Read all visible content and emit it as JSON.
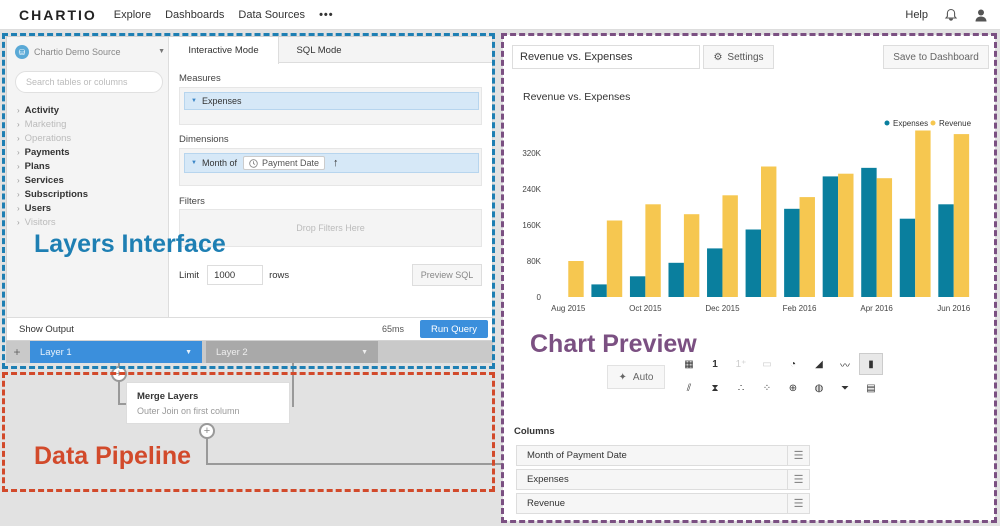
{
  "topbar": {
    "logo": "CHARTIO",
    "nav": [
      "Explore",
      "Dashboards",
      "Data Sources"
    ],
    "more": "•••",
    "help": "Help",
    "icons": [
      "bell-icon",
      "user-icon"
    ]
  },
  "sidebar": {
    "source": "Chartio Demo Source",
    "search_placeholder": "Search tables or columns",
    "tables": [
      {
        "label": "Activity",
        "dim": false
      },
      {
        "label": "Marketing",
        "dim": true
      },
      {
        "label": "Operations",
        "dim": true
      },
      {
        "label": "Payments",
        "dim": false
      },
      {
        "label": "Plans",
        "dim": false
      },
      {
        "label": "Services",
        "dim": false
      },
      {
        "label": "Subscriptions",
        "dim": false
      },
      {
        "label": "Users",
        "dim": false
      },
      {
        "label": "Visitors",
        "dim": true
      }
    ]
  },
  "query": {
    "tabs": [
      "Interactive Mode",
      "SQL Mode"
    ],
    "measures_label": "Measures",
    "measure_pill": "Expenses",
    "dimensions_label": "Dimensions",
    "dimension_pill": "Month of",
    "dimension_inner": "Payment Date",
    "filters_label": "Filters",
    "filters_drop": "Drop Filters Here",
    "limit_label": "Limit",
    "limit_value": "1000",
    "rows_label": "rows",
    "preview_sql": "Preview SQL",
    "show_output": "Show Output",
    "timing": "65ms",
    "run_query": "Run Query"
  },
  "layers": {
    "plus": "+",
    "items": [
      "Layer 1",
      "Layer 2"
    ]
  },
  "pipeline": {
    "merge_title": "Merge Layers",
    "merge_subtitle": "Outer Join on first column"
  },
  "annotations": {
    "layers": "Layers Interface",
    "pipeline": "Data Pipeline",
    "chart": "Chart Preview"
  },
  "chart_panel": {
    "title_value": "Revenue vs. Expenses",
    "settings": "Settings",
    "save": "Save to Dashboard",
    "auto": "Auto",
    "columns_label": "Columns",
    "columns": [
      "Month of Payment Date",
      "Expenses",
      "Revenue"
    ],
    "chart_type_icons": [
      "table-icon",
      "single-value-icon",
      "single-value-delta-icon",
      "progress-icon",
      "pie-icon",
      "area-icon",
      "line-icon",
      "bar-icon",
      "combo-icon",
      "funnel-stage-icon",
      "scatter-icon",
      "bubble-icon",
      "map-icon",
      "world-map-icon",
      "funnel-icon",
      "pivot-icon"
    ],
    "selected_icon": "bar-icon"
  },
  "colors": {
    "expenses": "#0a7f9e",
    "revenue": "#f6c750",
    "accent": "#3b8fdc"
  },
  "chart_data": {
    "type": "bar",
    "title": "Revenue vs. Expenses",
    "categories": [
      "Aug 2015",
      "Sep 2015",
      "Oct 2015",
      "Nov 2015",
      "Dec 2015",
      "Jan 2016",
      "Feb 2016",
      "Mar 2016",
      "Apr 2016",
      "May 2016",
      "Jun 2016"
    ],
    "tick_labels_shown": [
      "Aug 2015",
      "Oct 2015",
      "Dec 2015",
      "Feb 2016",
      "Apr 2016",
      "Jun 2016"
    ],
    "series": [
      {
        "name": "Expenses",
        "values": [
          0,
          28000,
          46000,
          76000,
          108000,
          150000,
          196000,
          268000,
          287000,
          174000,
          206000
        ]
      },
      {
        "name": "Revenue",
        "values": [
          80000,
          170000,
          206000,
          184000,
          226000,
          290000,
          222000,
          274000,
          264000,
          370000,
          362000
        ]
      }
    ],
    "ylim": [
      0,
      360000
    ],
    "yticks": [
      "0",
      "80K",
      "160K",
      "240K",
      "320K"
    ],
    "ytick_values": [
      0,
      80000,
      160000,
      240000,
      320000
    ],
    "legend_position": "top-right",
    "grid": false
  }
}
